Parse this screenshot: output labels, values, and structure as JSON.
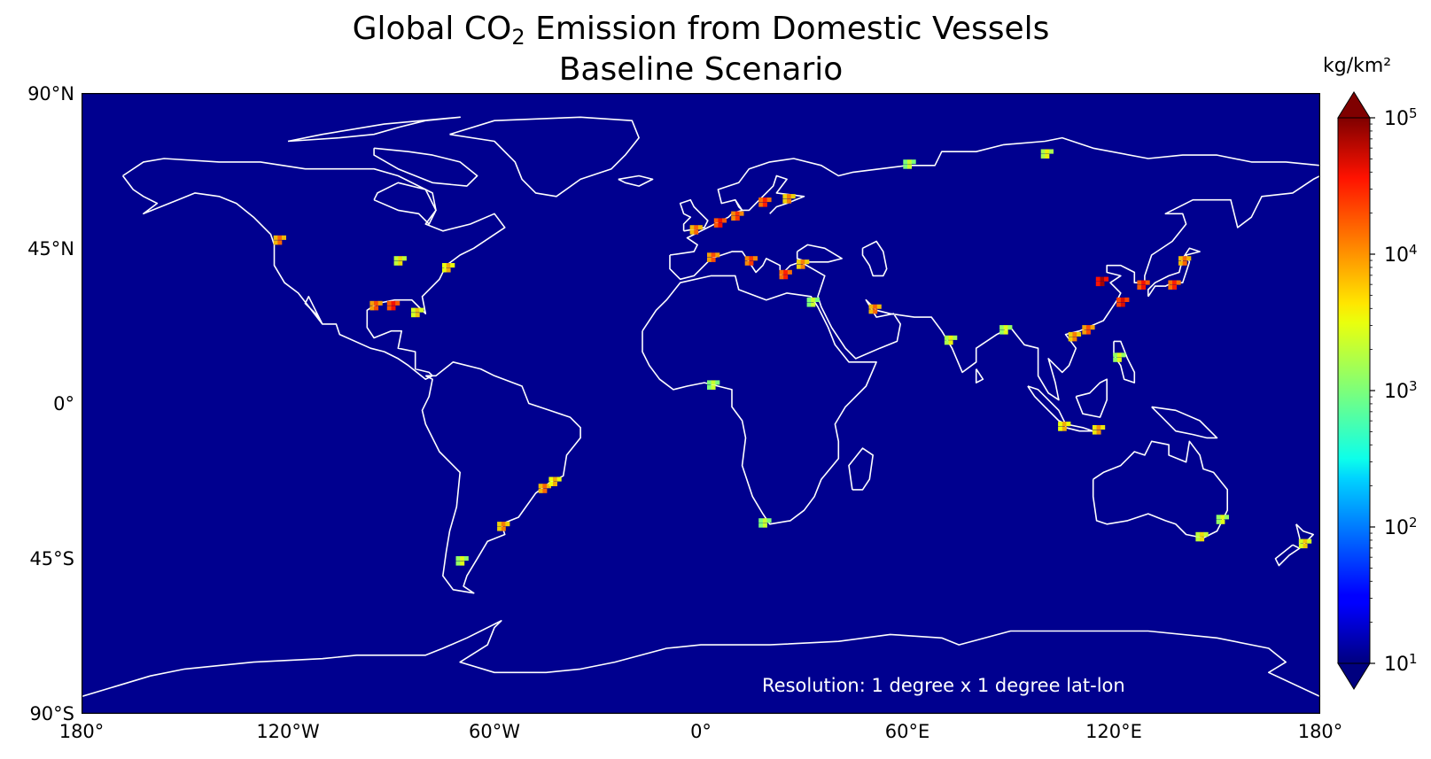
{
  "title": {
    "line1_pre": "Global CO",
    "line1_sub": "2",
    "line1_post": " Emission from Domestic Vessels",
    "line2": "Baseline Scenario"
  },
  "map": {
    "type": "heatmap",
    "projection": "PlateCarree",
    "background_color": "#00008f",
    "coastline_color": "#ffffff",
    "lat_ticks": [
      "90°N",
      "45°N",
      "0°",
      "45°S",
      "90°S"
    ],
    "lon_ticks": [
      "180°",
      "120°W",
      "60°W",
      "0°",
      "60°E",
      "120°E",
      "180°"
    ],
    "annotation": "Resolution: 1 degree x 1 degree lat-lon"
  },
  "colorbar": {
    "unit": "kg/km²",
    "scale": "log",
    "range": [
      10,
      100000
    ],
    "ticks": [
      {
        "base": "10",
        "exp": "1"
      },
      {
        "base": "10",
        "exp": "2"
      },
      {
        "base": "10",
        "exp": "3"
      },
      {
        "base": "10",
        "exp": "4"
      },
      {
        "base": "10",
        "exp": "5"
      }
    ],
    "colormap": "jet",
    "extend": "both"
  },
  "chart_data": {
    "type": "heatmap",
    "x_range": [
      -180,
      180
    ],
    "y_range": [
      -90,
      90
    ],
    "value_scale": "log",
    "value_range": [
      10,
      100000
    ],
    "hotspots": [
      {
        "lon": 116,
        "lat": 36,
        "intensity": 5.0
      },
      {
        "lon": 122,
        "lat": 30,
        "intensity": 4.8
      },
      {
        "lon": 128,
        "lat": 35,
        "intensity": 4.7
      },
      {
        "lon": 137,
        "lat": 35,
        "intensity": 4.6
      },
      {
        "lon": 140,
        "lat": 42,
        "intensity": 4.3
      },
      {
        "lon": 108,
        "lat": 20,
        "intensity": 4.2
      },
      {
        "lon": 112,
        "lat": 22,
        "intensity": 4.4
      },
      {
        "lon": 105,
        "lat": -6,
        "intensity": 4.0
      },
      {
        "lon": 115,
        "lat": -7,
        "intensity": 4.1
      },
      {
        "lon": 121,
        "lat": 14,
        "intensity": 3.6
      },
      {
        "lon": 5,
        "lat": 53,
        "intensity": 4.7
      },
      {
        "lon": 10,
        "lat": 55,
        "intensity": 4.5
      },
      {
        "lon": 18,
        "lat": 59,
        "intensity": 4.6
      },
      {
        "lon": 25,
        "lat": 60,
        "intensity": 4.2
      },
      {
        "lon": -2,
        "lat": 51,
        "intensity": 4.3
      },
      {
        "lon": 3,
        "lat": 43,
        "intensity": 4.4
      },
      {
        "lon": 14,
        "lat": 42,
        "intensity": 4.5
      },
      {
        "lon": 24,
        "lat": 38,
        "intensity": 4.6
      },
      {
        "lon": 29,
        "lat": 41,
        "intensity": 4.2
      },
      {
        "lon": 50,
        "lat": 28,
        "intensity": 4.3
      },
      {
        "lon": -90,
        "lat": 29,
        "intensity": 4.7
      },
      {
        "lon": -95,
        "lat": 29,
        "intensity": 4.4
      },
      {
        "lon": -83,
        "lat": 27,
        "intensity": 3.9
      },
      {
        "lon": -74,
        "lat": 40,
        "intensity": 4.0
      },
      {
        "lon": -123,
        "lat": 48,
        "intensity": 4.3
      },
      {
        "lon": -88,
        "lat": 42,
        "intensity": 3.8
      },
      {
        "lon": -46,
        "lat": -24,
        "intensity": 4.3
      },
      {
        "lon": -43,
        "lat": -22,
        "intensity": 4.0
      },
      {
        "lon": -58,
        "lat": -35,
        "intensity": 4.2
      },
      {
        "lon": -70,
        "lat": -45,
        "intensity": 3.6
      },
      {
        "lon": 145,
        "lat": -38,
        "intensity": 3.8
      },
      {
        "lon": 151,
        "lat": -33,
        "intensity": 3.6
      },
      {
        "lon": 18,
        "lat": -34,
        "intensity": 3.5
      },
      {
        "lon": 3,
        "lat": 6,
        "intensity": 3.5
      },
      {
        "lon": 72,
        "lat": 19,
        "intensity": 3.7
      },
      {
        "lon": 88,
        "lat": 22,
        "intensity": 3.6
      },
      {
        "lon": 175,
        "lat": -40,
        "intensity": 3.9
      },
      {
        "lon": 32,
        "lat": 30,
        "intensity": 3.5
      },
      {
        "lon": 100,
        "lat": 73,
        "intensity": 3.7
      },
      {
        "lon": 60,
        "lat": 70,
        "intensity": 3.5
      }
    ]
  }
}
